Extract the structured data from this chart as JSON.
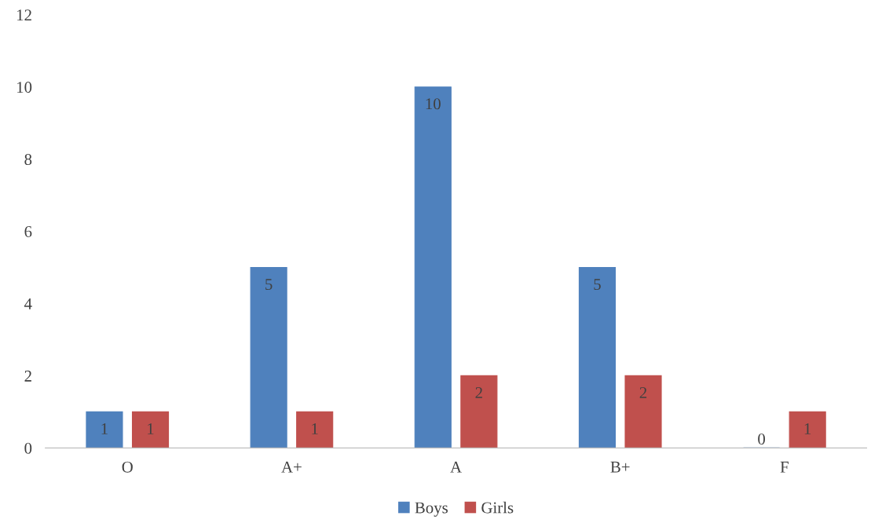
{
  "chart_data": {
    "type": "bar",
    "categories": [
      "O",
      "A+",
      "A",
      "B+",
      "F"
    ],
    "series": [
      {
        "name": "Boys",
        "color": "#4f81bd",
        "values": [
          1,
          5,
          10,
          5,
          0
        ]
      },
      {
        "name": "Girls",
        "color": "#c0504d",
        "values": [
          1,
          1,
          2,
          2,
          1
        ]
      }
    ],
    "ylim": [
      0,
      12
    ],
    "yticks": [
      0,
      2,
      4,
      6,
      8,
      10,
      12
    ],
    "grid": false,
    "legend": "bottom",
    "data_labels": true
  }
}
